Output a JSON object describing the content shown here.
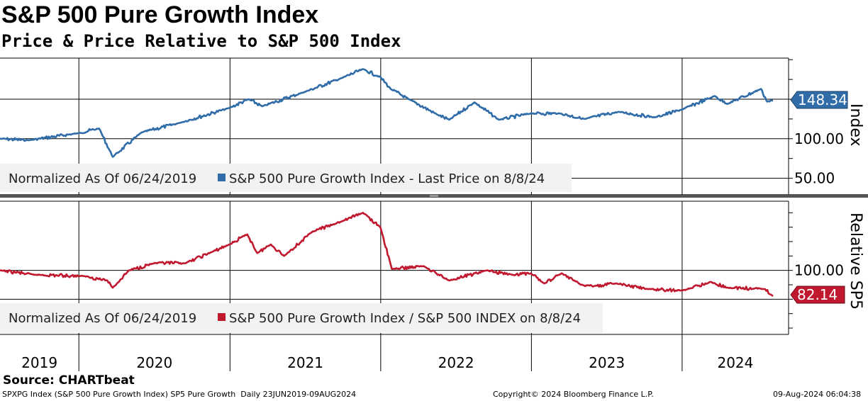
{
  "title": "S&P 500 Pure Growth Index",
  "subtitle": "Price & Price Relative to S&P 500 Index",
  "footer": {
    "source": "Source: CHARTbeat",
    "description": "SPXPG Index (S&P 500 Pure Growth Index) SP5 Pure Growth  Daily 23JUN2019-09AUG2024",
    "copyright": "Copyright© 2024 Bloomberg Finance L.P.",
    "timestamp": "09-Aug-2024 06:04:38"
  },
  "chart_data": [
    {
      "type": "line",
      "panel": "top",
      "ylabel": "Index",
      "yticks": [
        "100.00",
        "50.00"
      ],
      "ytick_values": [
        100,
        50
      ],
      "gridlines": [
        150,
        100,
        50
      ],
      "ylim": [
        29,
        202
      ],
      "last_value_label": "148.34",
      "color": "#2f6ca8",
      "legend": {
        "prefix": "Normalized As Of 06/24/2019",
        "entry": "S&P 500 Pure Growth Index - Last Price on 8/8/24"
      },
      "series": [
        {
          "name": "S&P 500 Pure Growth Index",
          "points": [
            [
              "2019-06-24",
              100
            ],
            [
              "2019-09-01",
              98
            ],
            [
              "2019-12-31",
              107
            ],
            [
              "2020-02-19",
              113
            ],
            [
              "2020-03-23",
              77
            ],
            [
              "2020-06-01",
              108
            ],
            [
              "2020-09-01",
              120
            ],
            [
              "2020-12-31",
              139
            ],
            [
              "2021-02-15",
              150
            ],
            [
              "2021-03-20",
              141
            ],
            [
              "2021-06-30",
              159
            ],
            [
              "2021-09-30",
              177
            ],
            [
              "2021-11-19",
              188
            ],
            [
              "2021-12-31",
              178
            ],
            [
              "2022-01-25",
              163
            ],
            [
              "2022-03-10",
              150
            ],
            [
              "2022-05-20",
              130
            ],
            [
              "2022-06-16",
              124
            ],
            [
              "2022-08-16",
              146
            ],
            [
              "2022-10-14",
              124
            ],
            [
              "2022-12-31",
              132
            ],
            [
              "2023-03-10",
              132
            ],
            [
              "2023-05-10",
              125
            ],
            [
              "2023-07-31",
              134
            ],
            [
              "2023-10-27",
              127
            ],
            [
              "2024-01-01",
              137
            ],
            [
              "2024-03-20",
              154
            ],
            [
              "2024-04-19",
              144
            ],
            [
              "2024-07-10",
              163
            ],
            [
              "2024-07-25",
              147
            ],
            [
              "2024-08-08",
              148.34
            ]
          ]
        }
      ]
    },
    {
      "type": "line",
      "panel": "bottom",
      "ylabel": "Relative SP5",
      "yticks": [
        "100.00"
      ],
      "ytick_values": [
        100
      ],
      "gridlines": [
        100,
        80
      ],
      "ylim": [
        55.6,
        148
      ],
      "last_value_label": "82.14",
      "color": "#c0182e",
      "legend": {
        "prefix": "Normalized As Of 06/24/2019",
        "entry": "S&P 500 Pure Growth Index / S&P 500 INDEX on 8/8/24"
      },
      "series": [
        {
          "name": "S&P 500 Pure Growth Index / S&P 500 INDEX",
          "points": [
            [
              "2019-06-24",
              100
            ],
            [
              "2019-09-15",
              97
            ],
            [
              "2020-01-15",
              96
            ],
            [
              "2020-03-10",
              93
            ],
            [
              "2020-03-23",
              88
            ],
            [
              "2020-05-01",
              100
            ],
            [
              "2020-07-01",
              105
            ],
            [
              "2020-09-15",
              105
            ],
            [
              "2020-11-20",
              113
            ],
            [
              "2020-12-31",
              118
            ],
            [
              "2021-02-12",
              125
            ],
            [
              "2021-03-08",
              112
            ],
            [
              "2021-04-10",
              118
            ],
            [
              "2021-05-12",
              110
            ],
            [
              "2021-07-20",
              127
            ],
            [
              "2021-09-10",
              132
            ],
            [
              "2021-11-19",
              140
            ],
            [
              "2021-12-31",
              130
            ],
            [
              "2022-01-28",
              101
            ],
            [
              "2022-04-15",
              103
            ],
            [
              "2022-06-16",
              93
            ],
            [
              "2022-09-15",
              100
            ],
            [
              "2022-11-15",
              97
            ],
            [
              "2022-12-31",
              98
            ],
            [
              "2023-02-01",
              91
            ],
            [
              "2023-03-15",
              98
            ],
            [
              "2023-05-01",
              90
            ],
            [
              "2023-06-01",
              89
            ],
            [
              "2023-07-25",
              91
            ],
            [
              "2023-10-10",
              87
            ],
            [
              "2024-01-01",
              86
            ],
            [
              "2024-03-10",
              92
            ],
            [
              "2024-04-19",
              88
            ],
            [
              "2024-07-20",
              87
            ],
            [
              "2024-08-08",
              82.14
            ]
          ]
        }
      ]
    }
  ],
  "xaxis": {
    "start": "2019-06-24",
    "end": "2024-08-08",
    "years": [
      "2019",
      "2020",
      "2021",
      "2022",
      "2023",
      "2024"
    ]
  }
}
